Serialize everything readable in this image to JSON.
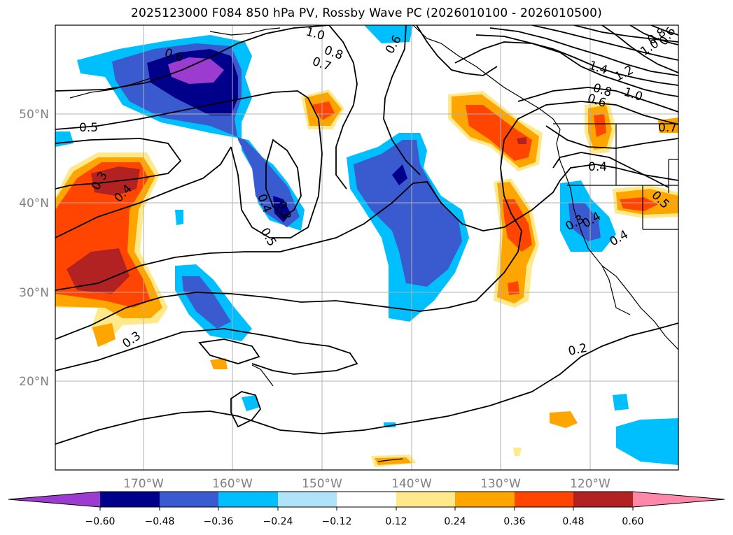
{
  "title": "2025123000 F084 850 hPa PV, Rossby Wave PC (2026010100 - 2026010500)",
  "map": {
    "lat_labels": [
      "50°N",
      "40°N",
      "30°N",
      "20°N"
    ],
    "lon_labels": [
      "170°W",
      "160°W",
      "150°W",
      "140°W",
      "130°W",
      "120°W"
    ],
    "contour_labels": [
      "0.6",
      "0.8",
      "0.7",
      "0.6",
      "1.0",
      "0.5",
      "0.3",
      "0.4",
      "0.4",
      "0.3",
      "0.5",
      "0.3",
      "0.4",
      "0.3",
      "0.2",
      "1.4",
      "1.2",
      "1.0",
      "0.8",
      "0.6",
      "0.7",
      "0.4",
      "0.5",
      "0.4",
      "1.0",
      "0.8",
      "0.6"
    ]
  },
  "colorbar": {
    "ticks": [
      "−0.60",
      "−0.48",
      "−0.36",
      "−0.24",
      "−0.12",
      "0.12",
      "0.24",
      "0.36",
      "0.48",
      "0.60"
    ],
    "colors": [
      "#9c3bd0",
      "#00008b",
      "#3a5ad0",
      "#00bfff",
      "#b0e2fa",
      "#ffffff",
      "#ffe98a",
      "#ffa500",
      "#ff4500",
      "#b22222",
      "#ff88aa"
    ]
  }
}
